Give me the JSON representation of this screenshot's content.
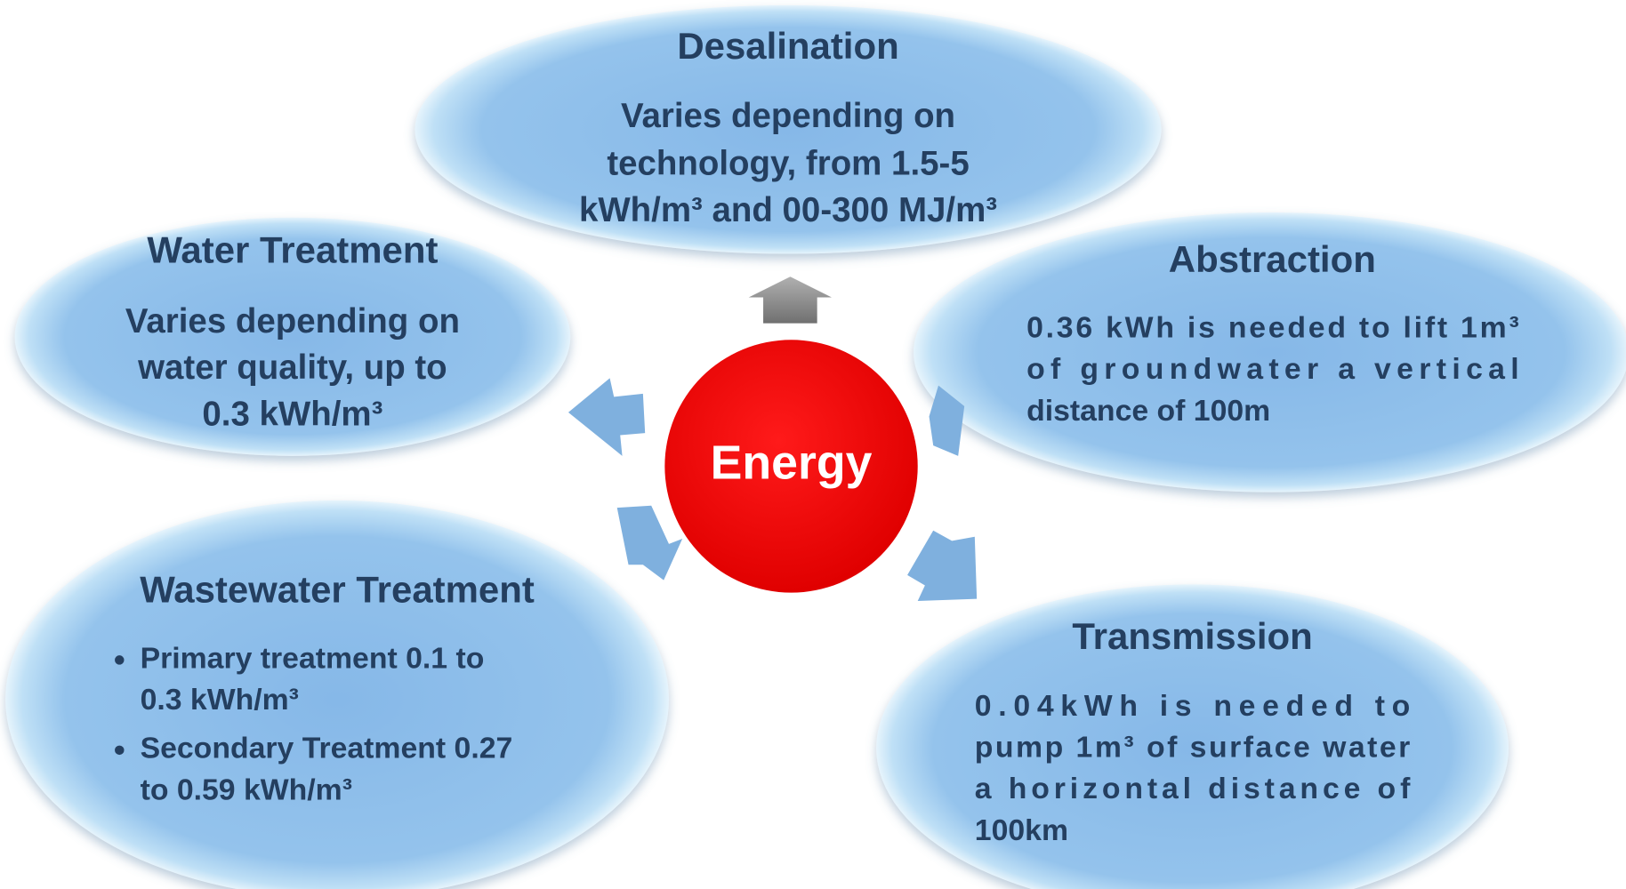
{
  "center": {
    "label": "Energy"
  },
  "nodes": [
    {
      "title": "Desalination",
      "lines": [
        "Varies depending on",
        "technology, from 1.5-5",
        "kWh/m³ and 00-300 MJ/m³"
      ]
    },
    {
      "title": "Water Treatment",
      "lines": [
        "Varies depending on",
        "water quality, up to",
        "0.3 kWh/m³"
      ]
    },
    {
      "title": "Abstraction",
      "lines": [
        "0.36 kWh is needed to lift 1m³",
        "of groundwater a vertical",
        "distance of 100m"
      ]
    },
    {
      "title": "Wastewater Treatment",
      "bullets": [
        [
          "Primary treatment 0.1 to",
          "0.3 kWh/m³"
        ],
        [
          "Secondary Treatment 0.27",
          "to 0.59 kWh/m³"
        ]
      ]
    },
    {
      "title": "Transmission",
      "lines": [
        "0.04kWh is needed to",
        "pump 1m³ of surface water",
        "a horizontal distance of",
        "100km"
      ]
    }
  ]
}
